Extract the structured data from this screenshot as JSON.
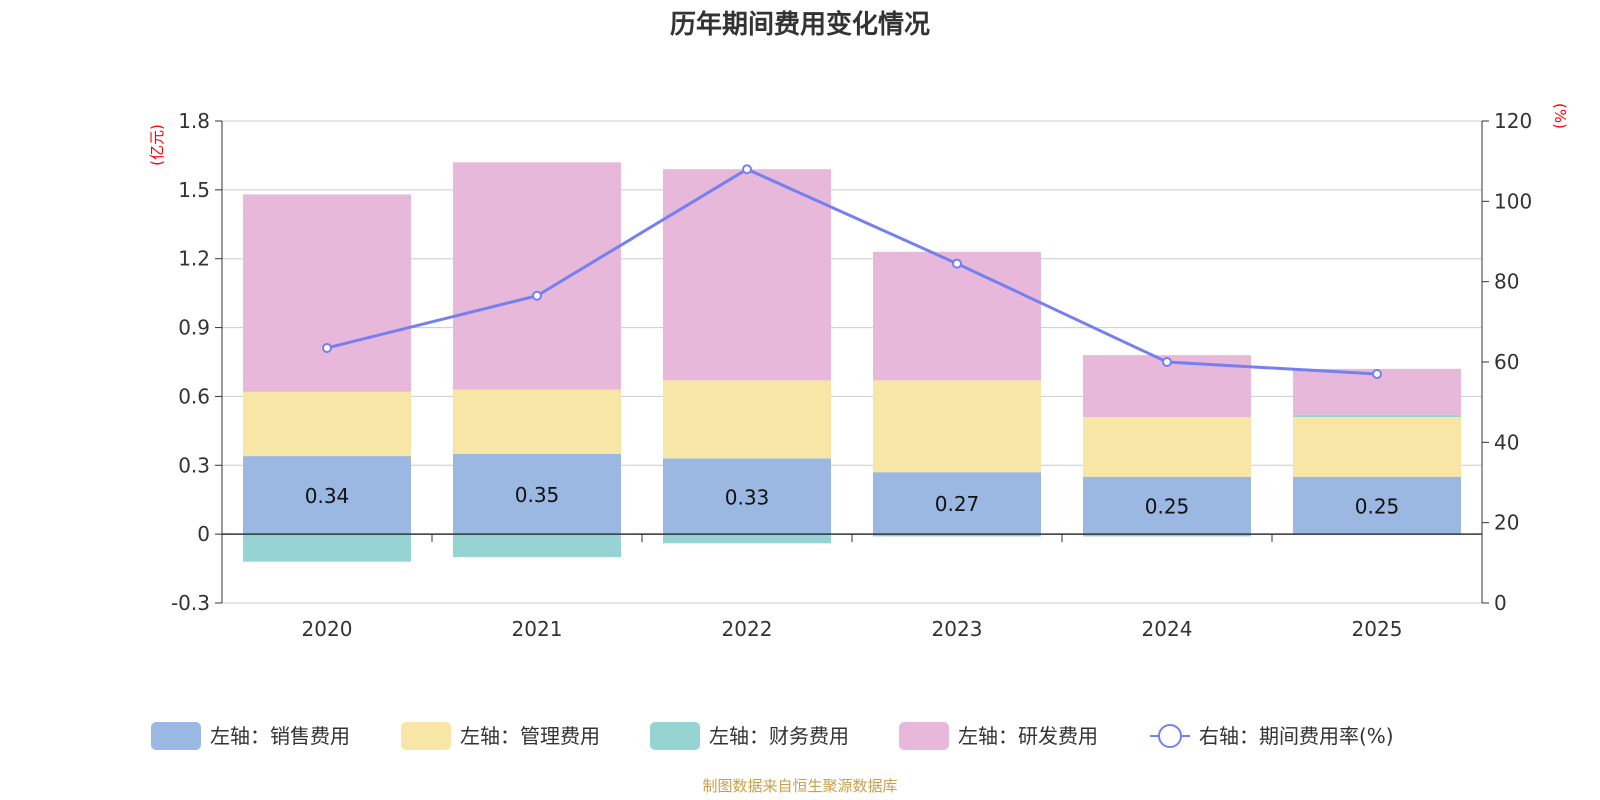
{
  "chart_data": {
    "type": "bar",
    "title": "历年期间费用变化情况",
    "categories": [
      "2020",
      "2021",
      "2022",
      "2023",
      "2024",
      "2025"
    ],
    "left_axis": {
      "unit_label": "(亿元)",
      "range": [
        -0.3,
        1.8
      ],
      "ticks": [
        -0.3,
        0,
        0.3,
        0.6,
        0.9,
        1.2,
        1.5,
        1.8
      ],
      "tick_labels": [
        "-0.3",
        "0",
        "0.3",
        "0.6",
        "0.9",
        "1.2",
        "1.5",
        "1.8"
      ]
    },
    "right_axis": {
      "unit_label": "(%)",
      "range": [
        0,
        120
      ],
      "ticks": [
        0,
        20,
        40,
        60,
        80,
        100,
        120
      ],
      "tick_labels": [
        "0",
        "20",
        "40",
        "60",
        "80",
        "100",
        "120"
      ]
    },
    "series": [
      {
        "name": "左轴：销售费用",
        "type": "bar",
        "axis": "left",
        "color": "#9bb8e2",
        "values": [
          0.34,
          0.35,
          0.33,
          0.27,
          0.25,
          0.25
        ],
        "labels": [
          "0.34",
          "0.35",
          "0.33",
          "0.27",
          "0.25",
          "0.25"
        ]
      },
      {
        "name": "左轴：管理费用",
        "type": "bar",
        "axis": "left",
        "color": "#f7e6a6",
        "values": [
          0.28,
          0.28,
          0.34,
          0.4,
          0.26,
          0.26
        ]
      },
      {
        "name": "左轴：财务费用",
        "type": "bar",
        "axis": "left",
        "color": "#96d4d4",
        "values": [
          -0.12,
          -0.1,
          -0.04,
          -0.01,
          -0.01,
          0.01
        ]
      },
      {
        "name": "左轴：研发费用",
        "type": "bar",
        "axis": "left",
        "color": "#e8b8da",
        "values": [
          0.86,
          0.99,
          0.92,
          0.56,
          0.27,
          0.2
        ]
      },
      {
        "name": "右轴：期间费用率(%)",
        "type": "line",
        "axis": "right",
        "color": "#7580f0",
        "values": [
          63.5,
          76.5,
          108.0,
          84.5,
          60.0,
          57.0
        ]
      }
    ],
    "legend_position": "bottom",
    "grid": true
  },
  "source": "制图数据来自恒生聚源数据库"
}
